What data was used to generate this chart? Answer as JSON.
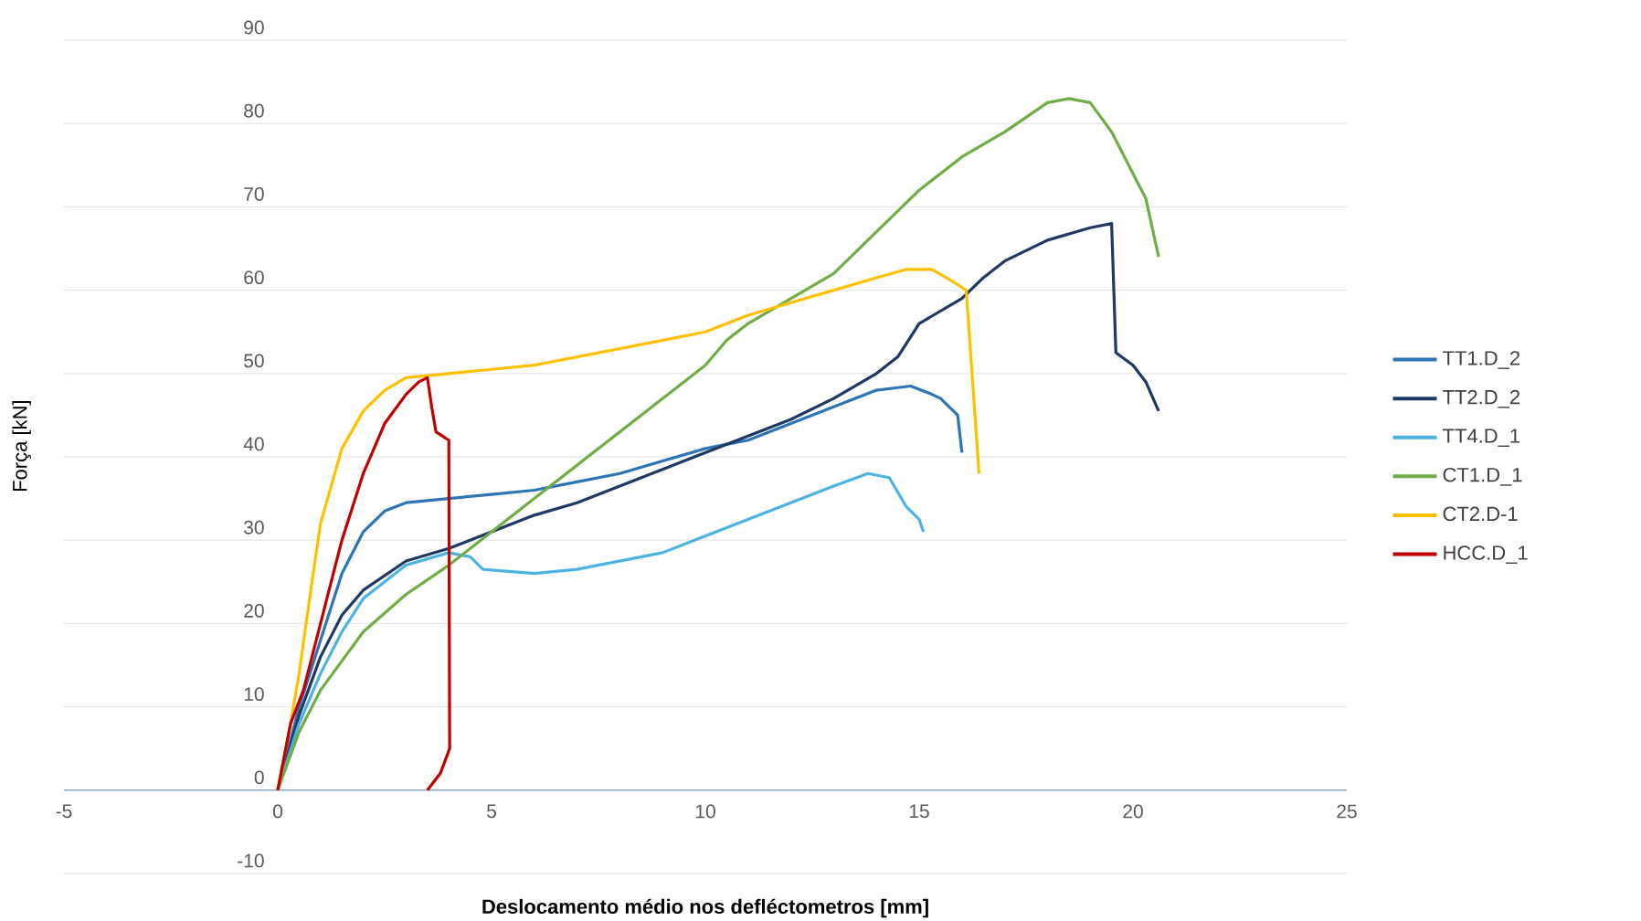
{
  "chart_data": {
    "type": "line",
    "xlabel": "Deslocamento médio nos defléctometros  [mm]",
    "ylabel": "Força [kN]",
    "xlim": [
      -5,
      25
    ],
    "xticks": [
      -5,
      0,
      5,
      10,
      15,
      20,
      25
    ],
    "ylim": [
      -10,
      90
    ],
    "yticks": [
      -10,
      0,
      10,
      20,
      30,
      40,
      50,
      60,
      70,
      80,
      90
    ],
    "grid": "y",
    "legend": "right",
    "marker": "none",
    "line_style": "solid",
    "series": [
      {
        "name": "TT1.D_2",
        "color": "#2e75b6",
        "x": [
          0,
          0.5,
          1,
          1.5,
          2,
          2.5,
          3,
          4,
          5,
          6,
          7,
          8,
          9,
          10,
          11,
          12,
          13,
          14,
          14.8,
          15.3,
          15.5,
          15.9,
          16
        ],
        "values": [
          0,
          10,
          18,
          26,
          31,
          33.5,
          34.5,
          35,
          35.5,
          36,
          37,
          38,
          39.5,
          41,
          42,
          44,
          46,
          48,
          48.5,
          47.5,
          47,
          45,
          40.5
        ]
      },
      {
        "name": "TT2.D_2",
        "color": "#1f3864",
        "x": [
          0,
          0.5,
          1,
          1.5,
          2,
          3,
          4,
          5,
          6,
          7,
          8,
          9,
          10,
          11,
          12,
          13,
          14,
          14.5,
          15,
          16,
          16.5,
          17,
          18,
          19,
          19.5,
          19.6,
          20,
          20.3,
          20.6
        ],
        "values": [
          0,
          9,
          16,
          21,
          24,
          27.5,
          29,
          31,
          33,
          34.5,
          36.5,
          38.5,
          40.5,
          42.5,
          44.5,
          47,
          50,
          52,
          56,
          59,
          61.5,
          63.5,
          66,
          67.5,
          68,
          52.5,
          51,
          49,
          45.5
        ]
      },
      {
        "name": "TT4.D_1",
        "color": "#4db3e0",
        "x": [
          0,
          0.5,
          1,
          1.5,
          2,
          3,
          4,
          4.5,
          4.8,
          6,
          7,
          8,
          9,
          10,
          11,
          12,
          13,
          13.8,
          14.3,
          14.7,
          15,
          15.1
        ],
        "values": [
          0,
          8,
          14,
          19,
          23,
          27,
          28.5,
          28,
          26.5,
          26,
          26.5,
          27.5,
          28.5,
          30.5,
          32.5,
          34.5,
          36.5,
          38,
          37.5,
          34,
          32.5,
          31
        ]
      },
      {
        "name": "CT1.D_1",
        "color": "#70ad47",
        "x": [
          0,
          0.5,
          1,
          2,
          3,
          4,
          5,
          6,
          7,
          8,
          9,
          10,
          10.5,
          11,
          12,
          13,
          14,
          15,
          16,
          17,
          18,
          18.5,
          19,
          19.5,
          20,
          20.3,
          20.6
        ],
        "values": [
          0,
          7,
          12,
          19,
          23.5,
          27,
          31,
          35,
          39,
          43,
          47,
          51,
          54,
          56,
          59,
          62,
          67,
          72,
          76,
          79,
          82.5,
          83,
          82.5,
          79,
          74,
          71,
          64
        ]
      },
      {
        "name": "CT2.D-1",
        "color": "#ffc000",
        "x": [
          0,
          0.3,
          0.5,
          0.8,
          1,
          1.5,
          2,
          2.5,
          3,
          4,
          5,
          6,
          7,
          8,
          9,
          10,
          11,
          12,
          13,
          14,
          14.7,
          15.3,
          15.8,
          16.1,
          16.4
        ],
        "values": [
          0,
          8,
          14,
          25,
          32,
          41,
          45.5,
          48,
          49.5,
          50,
          50.5,
          51,
          52,
          53,
          54,
          55,
          57,
          58.5,
          60,
          61.5,
          62.5,
          62.5,
          61,
          60,
          38
        ]
      },
      {
        "name": "HCC.D_1",
        "color": "#c00000",
        "x": [
          0,
          0.3,
          0.6,
          1,
          1.5,
          2,
          2.5,
          3,
          3.3,
          3.5,
          3.6,
          3.7,
          4,
          4.02,
          3.8,
          3.5
        ],
        "values": [
          0,
          8,
          12,
          20,
          30,
          38,
          44,
          47.5,
          49,
          49.5,
          46,
          43,
          42,
          5,
          2,
          0
        ]
      }
    ]
  }
}
